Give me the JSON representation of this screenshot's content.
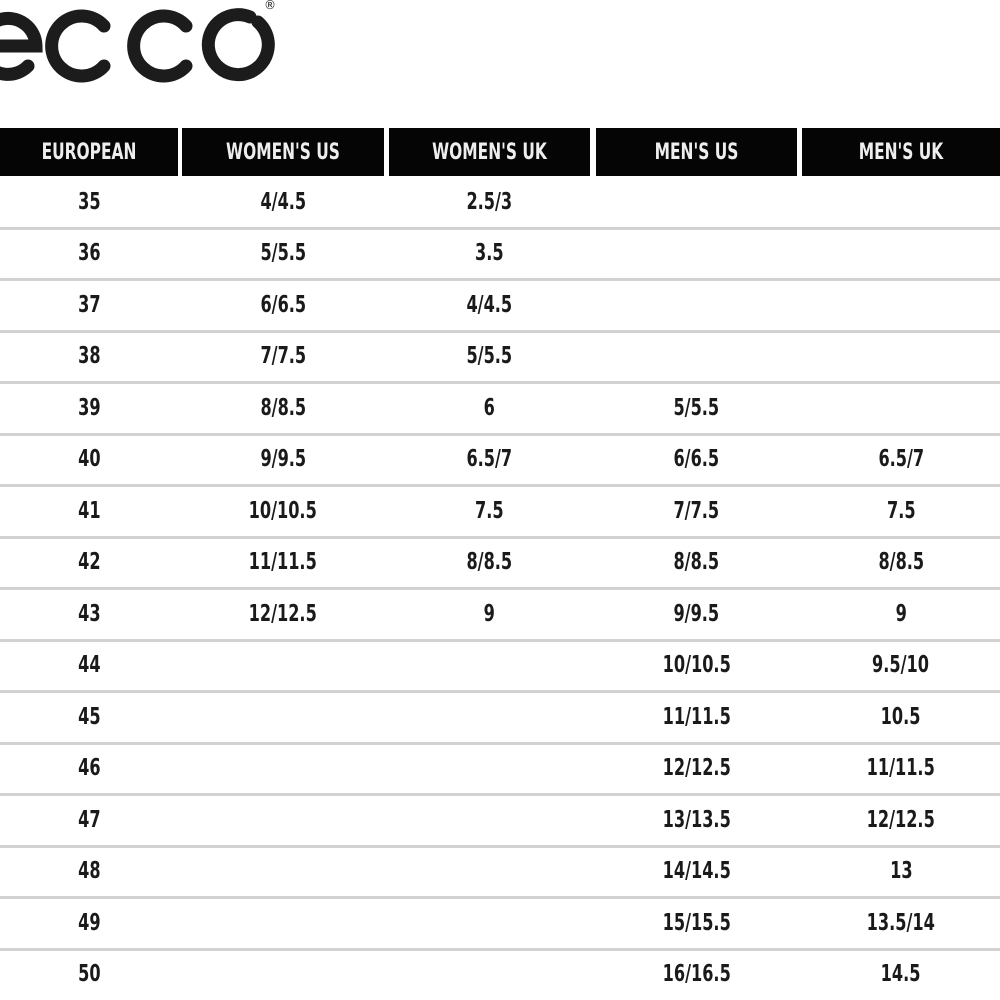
{
  "logo": {
    "text": "ecco",
    "registered_mark": "®"
  },
  "table": {
    "headers": [
      "EUROPEAN",
      "WOMEN'S US",
      "WOMEN'S UK",
      "MEN'S US",
      "MEN'S UK"
    ],
    "rows": [
      [
        "35",
        "4/4.5",
        "2.5/3",
        "",
        ""
      ],
      [
        "36",
        "5/5.5",
        "3.5",
        "",
        ""
      ],
      [
        "37",
        "6/6.5",
        "4/4.5",
        "",
        ""
      ],
      [
        "38",
        "7/7.5",
        "5/5.5",
        "",
        ""
      ],
      [
        "39",
        "8/8.5",
        "6",
        "5/5.5",
        ""
      ],
      [
        "40",
        "9/9.5",
        "6.5/7",
        "6/6.5",
        "6.5/7"
      ],
      [
        "41",
        "10/10.5",
        "7.5",
        "7/7.5",
        "7.5"
      ],
      [
        "42",
        "11/11.5",
        "8/8.5",
        "8/8.5",
        "8/8.5"
      ],
      [
        "43",
        "12/12.5",
        "9",
        "9/9.5",
        "9"
      ],
      [
        "44",
        "",
        "",
        "10/10.5",
        "9.5/10"
      ],
      [
        "45",
        "",
        "",
        "11/11.5",
        "10.5"
      ],
      [
        "46",
        "",
        "",
        "12/12.5",
        "11/11.5"
      ],
      [
        "47",
        "",
        "",
        "13/13.5",
        "12/12.5"
      ],
      [
        "48",
        "",
        "",
        "14/14.5",
        "13"
      ],
      [
        "49",
        "",
        "",
        "15/15.5",
        "13.5/14"
      ],
      [
        "50",
        "",
        "",
        "16/16.5",
        "14.5"
      ]
    ]
  },
  "colors": {
    "header_bg": "#050505",
    "header_text": "#eeeeee",
    "text": "#1a1a1a",
    "row_separator": "#d2d2d2"
  }
}
